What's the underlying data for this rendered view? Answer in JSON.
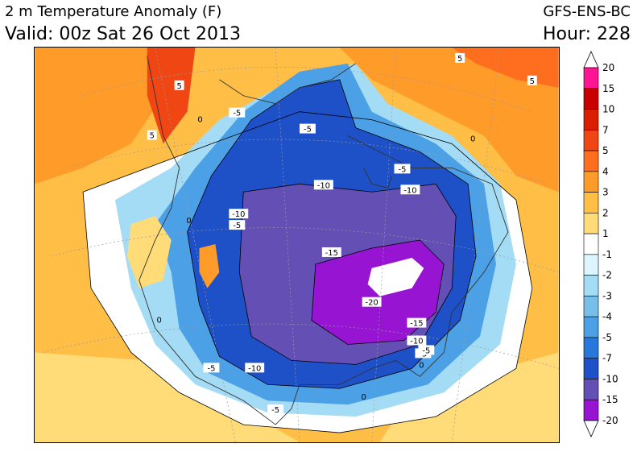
{
  "header": {
    "title": "2 m Temperature Anomaly (F)",
    "valid": "Valid: 00z Sat 26 Oct 2013",
    "model": "GFS-ENS-BC",
    "hour": "Hour: 228"
  },
  "legend": {
    "levels": [
      "20",
      "15",
      "10",
      "7",
      "5",
      "4",
      "3",
      "2",
      "1",
      "-1",
      "-2",
      "-3",
      "-4",
      "-5",
      "-7",
      "-10",
      "-15",
      "-20"
    ],
    "colors": [
      "#ff1493",
      "#c80000",
      "#dc1e00",
      "#f04614",
      "#ff6e1e",
      "#ff9b28",
      "#ffbe46",
      "#ffdc78",
      "#ffffff",
      "#dcf5ff",
      "#a5dcf5",
      "#78beeb",
      "#4ba0e6",
      "#2878dc",
      "#1e50c8",
      "#6450b4",
      "#9614d2"
    ],
    "min_arrow_color": "#ffffff",
    "max_arrow_color": "#ffffff"
  },
  "contour_labels": [
    {
      "text": "5"
    },
    {
      "text": "5"
    },
    {
      "text": "5"
    },
    {
      "text": "5"
    },
    {
      "text": "-5"
    },
    {
      "text": "-5"
    },
    {
      "text": "-5"
    },
    {
      "text": "-5"
    },
    {
      "text": "-5"
    },
    {
      "text": "-5"
    },
    {
      "text": "-5"
    },
    {
      "text": "-5"
    },
    {
      "text": "-10"
    },
    {
      "text": "-10"
    },
    {
      "text": "-10"
    },
    {
      "text": "-10"
    },
    {
      "text": "-10"
    },
    {
      "text": "-15"
    },
    {
      "text": "-15"
    },
    {
      "text": "-20"
    },
    {
      "text": "0"
    },
    {
      "text": "0"
    },
    {
      "text": "0"
    },
    {
      "text": "0"
    },
    {
      "text": "0"
    },
    {
      "text": "0"
    }
  ]
}
